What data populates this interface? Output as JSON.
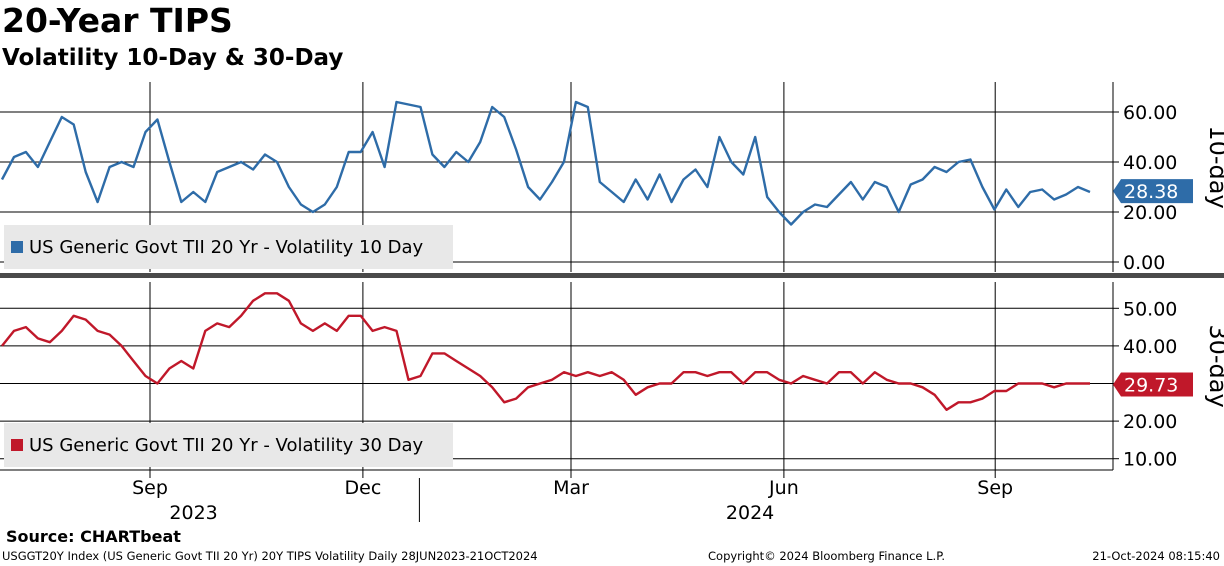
{
  "header": {
    "title": "20-Year TIPS",
    "subtitle": "Volatility 10-Day & 30-Day"
  },
  "chart_data": [
    {
      "type": "line",
      "panel_label": "10-day",
      "ylim": [
        -4,
        72
      ],
      "yticks": [
        0,
        20,
        40,
        60
      ],
      "ytick_labels": [
        "0.00",
        "20.00",
        "40.00",
        "60.00"
      ],
      "legend": "US Generic Govt TII 20 Yr - Volatility 10 Day",
      "last_value": 28.38,
      "last_label": "28.38",
      "color": "#2e6ca8",
      "grid": true,
      "series": [
        {
          "name": "US Generic Govt TII 20 Yr - Volatility 10 Day",
          "x": [
            0,
            2,
            4,
            6,
            8,
            10,
            12,
            14,
            16,
            18,
            20,
            22,
            24,
            26,
            28,
            30,
            32,
            34,
            36,
            38,
            40,
            42,
            44,
            46,
            48,
            50,
            52,
            54,
            56,
            58,
            60,
            62,
            64,
            66,
            68,
            70,
            72,
            74,
            76,
            78,
            80,
            82,
            84,
            86,
            88,
            90,
            92,
            94,
            96,
            98,
            100,
            102,
            104,
            106,
            108,
            110,
            112,
            114,
            116,
            118,
            120,
            122,
            124,
            126,
            128,
            130,
            132,
            134,
            136,
            138,
            140,
            142,
            144,
            146,
            148,
            150,
            152,
            154,
            156,
            158,
            160,
            162,
            164,
            166,
            168,
            170,
            172,
            174,
            176,
            178,
            180,
            182
          ],
          "values": [
            33,
            42,
            44,
            38,
            48,
            58,
            55,
            36,
            24,
            38,
            40,
            38,
            52,
            57,
            40,
            24,
            28,
            24,
            36,
            38,
            40,
            37,
            43,
            40,
            30,
            23,
            20,
            23,
            30,
            44,
            44,
            52,
            38,
            64,
            63,
            62,
            43,
            38,
            44,
            40,
            48,
            62,
            58,
            45,
            30,
            25,
            32,
            40,
            64,
            62,
            32,
            28,
            24,
            33,
            25,
            35,
            24,
            33,
            37,
            30,
            50,
            40,
            35,
            50,
            26,
            20,
            15,
            20,
            23,
            22,
            27,
            32,
            25,
            32,
            30,
            20,
            31,
            33,
            38,
            36,
            40,
            41,
            30,
            21,
            29,
            22,
            28,
            29,
            25,
            27,
            30,
            28
          ],
          "note": "x = weekly index from 28JUN2023 to 21OCT2024"
        }
      ]
    },
    {
      "type": "line",
      "panel_label": "30-day",
      "ylim": [
        7,
        57
      ],
      "yticks": [
        10,
        20,
        30,
        40,
        50
      ],
      "ytick_labels": [
        "10.00",
        "20.00",
        "30.00",
        "40.00",
        "50.00"
      ],
      "legend": "US Generic Govt TII 20 Yr - Volatility 30 Day",
      "last_value": 29.73,
      "last_label": "29.73",
      "color": "#c0182a",
      "grid": true,
      "series": [
        {
          "name": "US Generic Govt TII 20 Yr - Volatility 30 Day",
          "x": [
            0,
            2,
            4,
            6,
            8,
            10,
            12,
            14,
            16,
            18,
            20,
            22,
            24,
            26,
            28,
            30,
            32,
            34,
            36,
            38,
            40,
            42,
            44,
            46,
            48,
            50,
            52,
            54,
            56,
            58,
            60,
            62,
            64,
            66,
            68,
            70,
            72,
            74,
            76,
            78,
            80,
            82,
            84,
            86,
            88,
            90,
            92,
            94,
            96,
            98,
            100,
            102,
            104,
            106,
            108,
            110,
            112,
            114,
            116,
            118,
            120,
            122,
            124,
            126,
            128,
            130,
            132,
            134,
            136,
            138,
            140,
            142,
            144,
            146,
            148,
            150,
            152,
            154,
            156,
            158,
            160,
            162,
            164,
            166,
            168,
            170,
            172,
            174,
            176,
            178,
            180,
            182
          ],
          "values": [
            40,
            44,
            45,
            42,
            41,
            44,
            48,
            47,
            44,
            43,
            40,
            36,
            32,
            30,
            34,
            36,
            34,
            44,
            46,
            45,
            48,
            52,
            54,
            54,
            52,
            46,
            44,
            46,
            44,
            48,
            48,
            44,
            45,
            44,
            31,
            32,
            38,
            38,
            36,
            34,
            32,
            29,
            25,
            26,
            29,
            30,
            31,
            33,
            32,
            33,
            32,
            33,
            31,
            27,
            29,
            30,
            30,
            33,
            33,
            32,
            33,
            33,
            30,
            33,
            33,
            31,
            30,
            32,
            31,
            30,
            33,
            33,
            30,
            33,
            31,
            30,
            30,
            29,
            27,
            23,
            25,
            25,
            26,
            28,
            28,
            30,
            30,
            30,
            29,
            30,
            30,
            30
          ],
          "note": "x = weekly index from 28JUN2023 to 21OCT2024"
        }
      ]
    }
  ],
  "xaxis": {
    "months": [
      {
        "label": "Sep",
        "pos": 9.3
      },
      {
        "label": "Dec",
        "pos": 22.5
      },
      {
        "label": "Mar",
        "pos": 35.4
      },
      {
        "label": "Jun",
        "pos": 48.6
      },
      {
        "label": "Sep",
        "pos": 61.7
      }
    ],
    "years": [
      {
        "label": "2023",
        "pos": 12.0
      },
      {
        "label": "2024",
        "pos": 46.5
      }
    ],
    "year_boundary": 26.0,
    "range_weeks": [
      0,
      69
    ]
  },
  "footer": {
    "source": "Source: CHARTbeat",
    "left": "USGGT20Y Index (US Generic Govt TII 20 Yr) 20Y TIPS Volatility  Daily 28JUN2023-21OCT2024",
    "middle": "Copyright© 2024 Bloomberg Finance L.P.",
    "right": "21-Oct-2024 08:15:40"
  }
}
